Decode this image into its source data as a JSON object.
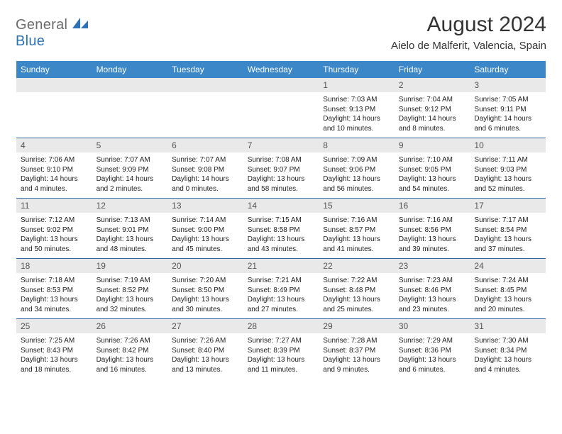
{
  "brand": {
    "text1": "General",
    "text2": "Blue"
  },
  "title": "August 2024",
  "location": "Aielo de Malferit, Valencia, Spain",
  "colors": {
    "header_bg": "#3b87c8",
    "header_text": "#ffffff",
    "band_bg": "#e9e9e9",
    "band_text": "#555555",
    "body_text": "#222222",
    "rule": "#2d6aa3",
    "logo_gray": "#6b6b6b",
    "logo_blue": "#2d72b6"
  },
  "typography": {
    "title_fontsize": 30,
    "location_fontsize": 15,
    "dow_fontsize": 12,
    "daynum_fontsize": 12,
    "cell_fontsize": 10
  },
  "dow": [
    "Sunday",
    "Monday",
    "Tuesday",
    "Wednesday",
    "Thursday",
    "Friday",
    "Saturday"
  ],
  "weeks": [
    [
      {
        "n": "",
        "sr": "",
        "ss": "",
        "dl": ""
      },
      {
        "n": "",
        "sr": "",
        "ss": "",
        "dl": ""
      },
      {
        "n": "",
        "sr": "",
        "ss": "",
        "dl": ""
      },
      {
        "n": "",
        "sr": "",
        "ss": "",
        "dl": ""
      },
      {
        "n": "1",
        "sr": "Sunrise: 7:03 AM",
        "ss": "Sunset: 9:13 PM",
        "dl": "Daylight: 14 hours and 10 minutes."
      },
      {
        "n": "2",
        "sr": "Sunrise: 7:04 AM",
        "ss": "Sunset: 9:12 PM",
        "dl": "Daylight: 14 hours and 8 minutes."
      },
      {
        "n": "3",
        "sr": "Sunrise: 7:05 AM",
        "ss": "Sunset: 9:11 PM",
        "dl": "Daylight: 14 hours and 6 minutes."
      }
    ],
    [
      {
        "n": "4",
        "sr": "Sunrise: 7:06 AM",
        "ss": "Sunset: 9:10 PM",
        "dl": "Daylight: 14 hours and 4 minutes."
      },
      {
        "n": "5",
        "sr": "Sunrise: 7:07 AM",
        "ss": "Sunset: 9:09 PM",
        "dl": "Daylight: 14 hours and 2 minutes."
      },
      {
        "n": "6",
        "sr": "Sunrise: 7:07 AM",
        "ss": "Sunset: 9:08 PM",
        "dl": "Daylight: 14 hours and 0 minutes."
      },
      {
        "n": "7",
        "sr": "Sunrise: 7:08 AM",
        "ss": "Sunset: 9:07 PM",
        "dl": "Daylight: 13 hours and 58 minutes."
      },
      {
        "n": "8",
        "sr": "Sunrise: 7:09 AM",
        "ss": "Sunset: 9:06 PM",
        "dl": "Daylight: 13 hours and 56 minutes."
      },
      {
        "n": "9",
        "sr": "Sunrise: 7:10 AM",
        "ss": "Sunset: 9:05 PM",
        "dl": "Daylight: 13 hours and 54 minutes."
      },
      {
        "n": "10",
        "sr": "Sunrise: 7:11 AM",
        "ss": "Sunset: 9:03 PM",
        "dl": "Daylight: 13 hours and 52 minutes."
      }
    ],
    [
      {
        "n": "11",
        "sr": "Sunrise: 7:12 AM",
        "ss": "Sunset: 9:02 PM",
        "dl": "Daylight: 13 hours and 50 minutes."
      },
      {
        "n": "12",
        "sr": "Sunrise: 7:13 AM",
        "ss": "Sunset: 9:01 PM",
        "dl": "Daylight: 13 hours and 48 minutes."
      },
      {
        "n": "13",
        "sr": "Sunrise: 7:14 AM",
        "ss": "Sunset: 9:00 PM",
        "dl": "Daylight: 13 hours and 45 minutes."
      },
      {
        "n": "14",
        "sr": "Sunrise: 7:15 AM",
        "ss": "Sunset: 8:58 PM",
        "dl": "Daylight: 13 hours and 43 minutes."
      },
      {
        "n": "15",
        "sr": "Sunrise: 7:16 AM",
        "ss": "Sunset: 8:57 PM",
        "dl": "Daylight: 13 hours and 41 minutes."
      },
      {
        "n": "16",
        "sr": "Sunrise: 7:16 AM",
        "ss": "Sunset: 8:56 PM",
        "dl": "Daylight: 13 hours and 39 minutes."
      },
      {
        "n": "17",
        "sr": "Sunrise: 7:17 AM",
        "ss": "Sunset: 8:54 PM",
        "dl": "Daylight: 13 hours and 37 minutes."
      }
    ],
    [
      {
        "n": "18",
        "sr": "Sunrise: 7:18 AM",
        "ss": "Sunset: 8:53 PM",
        "dl": "Daylight: 13 hours and 34 minutes."
      },
      {
        "n": "19",
        "sr": "Sunrise: 7:19 AM",
        "ss": "Sunset: 8:52 PM",
        "dl": "Daylight: 13 hours and 32 minutes."
      },
      {
        "n": "20",
        "sr": "Sunrise: 7:20 AM",
        "ss": "Sunset: 8:50 PM",
        "dl": "Daylight: 13 hours and 30 minutes."
      },
      {
        "n": "21",
        "sr": "Sunrise: 7:21 AM",
        "ss": "Sunset: 8:49 PM",
        "dl": "Daylight: 13 hours and 27 minutes."
      },
      {
        "n": "22",
        "sr": "Sunrise: 7:22 AM",
        "ss": "Sunset: 8:48 PM",
        "dl": "Daylight: 13 hours and 25 minutes."
      },
      {
        "n": "23",
        "sr": "Sunrise: 7:23 AM",
        "ss": "Sunset: 8:46 PM",
        "dl": "Daylight: 13 hours and 23 minutes."
      },
      {
        "n": "24",
        "sr": "Sunrise: 7:24 AM",
        "ss": "Sunset: 8:45 PM",
        "dl": "Daylight: 13 hours and 20 minutes."
      }
    ],
    [
      {
        "n": "25",
        "sr": "Sunrise: 7:25 AM",
        "ss": "Sunset: 8:43 PM",
        "dl": "Daylight: 13 hours and 18 minutes."
      },
      {
        "n": "26",
        "sr": "Sunrise: 7:26 AM",
        "ss": "Sunset: 8:42 PM",
        "dl": "Daylight: 13 hours and 16 minutes."
      },
      {
        "n": "27",
        "sr": "Sunrise: 7:26 AM",
        "ss": "Sunset: 8:40 PM",
        "dl": "Daylight: 13 hours and 13 minutes."
      },
      {
        "n": "28",
        "sr": "Sunrise: 7:27 AM",
        "ss": "Sunset: 8:39 PM",
        "dl": "Daylight: 13 hours and 11 minutes."
      },
      {
        "n": "29",
        "sr": "Sunrise: 7:28 AM",
        "ss": "Sunset: 8:37 PM",
        "dl": "Daylight: 13 hours and 9 minutes."
      },
      {
        "n": "30",
        "sr": "Sunrise: 7:29 AM",
        "ss": "Sunset: 8:36 PM",
        "dl": "Daylight: 13 hours and 6 minutes."
      },
      {
        "n": "31",
        "sr": "Sunrise: 7:30 AM",
        "ss": "Sunset: 8:34 PM",
        "dl": "Daylight: 13 hours and 4 minutes."
      }
    ]
  ]
}
